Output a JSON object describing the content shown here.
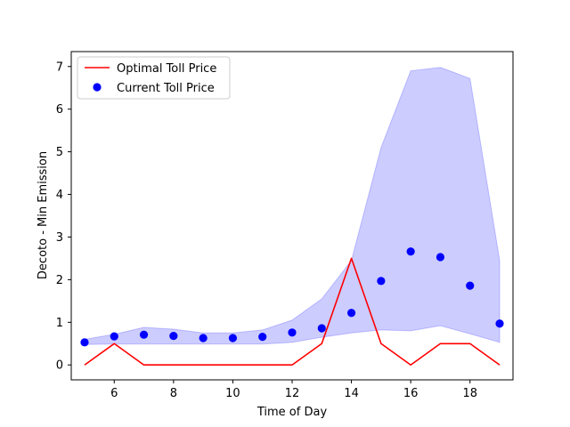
{
  "chart_data": {
    "type": "line",
    "xlabel": "Time of Day",
    "ylabel": "Decoto - Min Emission",
    "xlim": [
      4.55,
      19.45
    ],
    "ylim": [
      -0.35,
      7.35
    ],
    "xticks": [
      6,
      8,
      10,
      12,
      14,
      16,
      18
    ],
    "yticks": [
      0,
      1,
      2,
      3,
      4,
      5,
      6,
      7
    ],
    "grid": false,
    "legend_position": "top-left",
    "legend": {
      "line_label": "Optimal Toll Price",
      "scatter_label": "Current Toll Price"
    },
    "series": [
      {
        "name": "Optimal Toll Price",
        "kind": "line",
        "color": "#ff0000",
        "x": [
          5,
          6,
          7,
          8,
          9,
          10,
          11,
          12,
          13,
          14,
          15,
          16,
          17,
          18,
          19
        ],
        "y": [
          0.0,
          0.5,
          0.0,
          0.0,
          0.0,
          0.0,
          0.0,
          0.0,
          0.5,
          2.5,
          0.5,
          0.0,
          0.5,
          0.5,
          0.0
        ]
      },
      {
        "name": "Current Toll Price",
        "kind": "scatter",
        "color": "#0000ff",
        "x": [
          5,
          6,
          7,
          8,
          9,
          10,
          11,
          12,
          13,
          14,
          15,
          16,
          17,
          18,
          19
        ],
        "y": [
          0.53,
          0.67,
          0.71,
          0.68,
          0.63,
          0.63,
          0.66,
          0.76,
          0.86,
          1.22,
          1.97,
          2.66,
          2.53,
          1.86,
          0.97
        ]
      }
    ],
    "band": {
      "color": "#0000ff",
      "x": [
        5,
        6,
        7,
        8,
        9,
        10,
        11,
        12,
        13,
        14,
        15,
        16,
        17,
        18,
        19
      ],
      "lower": [
        0.48,
        0.49,
        0.49,
        0.49,
        0.49,
        0.49,
        0.49,
        0.53,
        0.65,
        0.75,
        0.82,
        0.8,
        0.92,
        0.73,
        0.53
      ],
      "upper": [
        0.6,
        0.72,
        0.88,
        0.84,
        0.75,
        0.75,
        0.82,
        1.05,
        1.55,
        2.45,
        5.1,
        6.9,
        6.98,
        6.72,
        2.45
      ]
    }
  }
}
